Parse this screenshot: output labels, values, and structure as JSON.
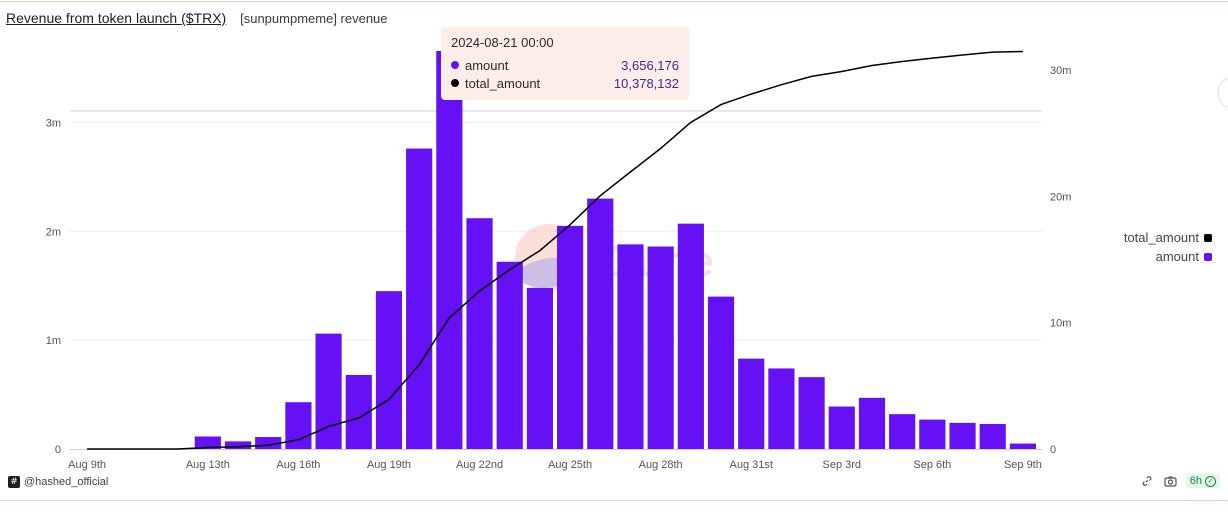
{
  "header": {
    "title": "Revenue from token launch ($TRX)",
    "subtitle": "[sunpumpmeme] revenue"
  },
  "tooltip": {
    "date": "2024-08-21 00:00",
    "rows": [
      {
        "label": "amount",
        "value": "3,656,176",
        "color": "#6611f5"
      },
      {
        "label": "total_amount",
        "value": "10,378,132",
        "color": "#000000"
      }
    ]
  },
  "legend": {
    "items": [
      {
        "label": "total_amount",
        "color": "#000000"
      },
      {
        "label": "amount",
        "color": "#6611f5"
      }
    ]
  },
  "watermark": "Dune",
  "footer": {
    "author": "@hashed_official",
    "refresh_badge": "6h"
  },
  "colors": {
    "bar": "#6611f5",
    "line": "#000000",
    "grid": "#eeeeee",
    "axis_text": "#555555"
  },
  "chart_data": {
    "type": "bar",
    "title": "Revenue from token launch ($TRX)",
    "subtitle": "[sunpumpmeme] revenue",
    "x_tick_labels": [
      "Aug 9th",
      "Aug 13th",
      "Aug 16th",
      "Aug 19th",
      "Aug 22nd",
      "Aug 25th",
      "Aug 28th",
      "Aug 31st",
      "Sep 3rd",
      "Sep 6th",
      "Sep 9th"
    ],
    "left_axis": {
      "ticks": [
        "0",
        "1m",
        "2m",
        "3m"
      ],
      "ylim": [
        0,
        3656176
      ]
    },
    "right_axis": {
      "ticks": [
        "0",
        "10m",
        "20m",
        "30m"
      ],
      "ylim": [
        0,
        31500000
      ]
    },
    "categories": [
      "Aug 9th",
      "Aug 10th",
      "Aug 11th",
      "Aug 12th",
      "Aug 13th",
      "Aug 14th",
      "Aug 15th",
      "Aug 16th",
      "Aug 17th",
      "Aug 18th",
      "Aug 19th",
      "Aug 20th",
      "Aug 21st",
      "Aug 22nd",
      "Aug 23rd",
      "Aug 24th",
      "Aug 25th",
      "Aug 26th",
      "Aug 27th",
      "Aug 28th",
      "Aug 29th",
      "Aug 30th",
      "Aug 31st",
      "Sep 1st",
      "Sep 2nd",
      "Sep 3rd",
      "Sep 4th",
      "Sep 5th",
      "Sep 6th",
      "Sep 7th",
      "Sep 8th",
      "Sep 9th"
    ],
    "series": [
      {
        "name": "amount",
        "axis": "left",
        "type": "bar",
        "values": [
          0,
          0,
          0,
          0,
          115000,
          70000,
          110000,
          430000,
          1060000,
          680000,
          1450000,
          2760000,
          3656176,
          2120000,
          1720000,
          1480000,
          2050000,
          2300000,
          1880000,
          1860000,
          2070000,
          1400000,
          830000,
          740000,
          660000,
          390000,
          470000,
          320000,
          270000,
          240000,
          230000,
          50000
        ]
      },
      {
        "name": "total_amount",
        "axis": "right",
        "type": "line",
        "values": [
          0,
          0,
          0,
          0,
          115000,
          185000,
          295000,
          725000,
          1785000,
          2465000,
          3915000,
          6675000,
          10378132,
          12500000,
          14200000,
          15700000,
          17750000,
          20050000,
          21930000,
          23790000,
          25860000,
          27260000,
          28090000,
          28830000,
          29490000,
          29880000,
          30350000,
          30670000,
          30940000,
          31180000,
          31410000,
          31460000
        ]
      }
    ]
  }
}
